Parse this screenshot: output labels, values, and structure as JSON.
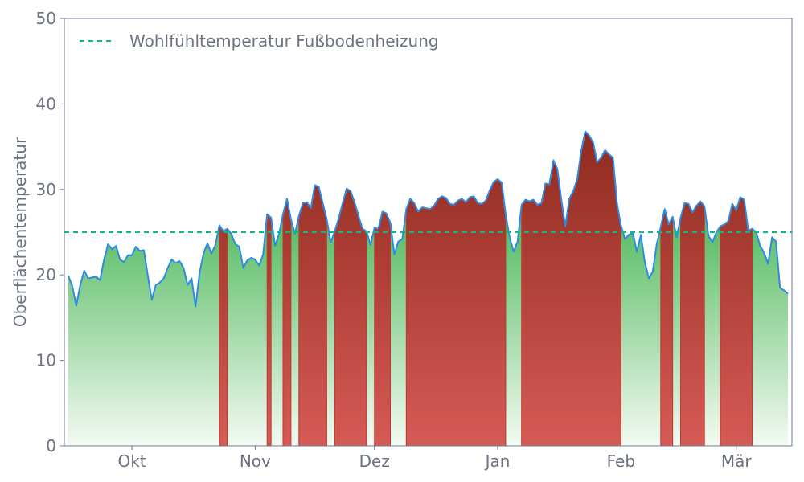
{
  "chart_data": {
    "type": "area",
    "title": "",
    "xlabel": "",
    "ylabel": "Oberflächentemperatur",
    "ylim": [
      0,
      50
    ],
    "yticks": [
      0,
      10,
      20,
      30,
      40,
      50
    ],
    "xlim": [
      "2023-09-14",
      "2024-03-15"
    ],
    "xticks": [
      {
        "date": "2023-10-01",
        "label": "Okt"
      },
      {
        "date": "2023-11-01",
        "label": "Nov"
      },
      {
        "date": "2023-12-01",
        "label": "Dez"
      },
      {
        "date": "2024-01-01",
        "label": "Jan"
      },
      {
        "date": "2024-02-01",
        "label": "Feb"
      },
      {
        "date": "2024-03-01",
        "label": "Mär"
      }
    ],
    "grid": false,
    "legend": {
      "position": "top-left",
      "entries": [
        "Wohlfühltemperatur Fußbodenheizung"
      ]
    },
    "threshold": {
      "name": "Wohlfühltemperatur Fußbodenheizung",
      "value": 25,
      "style": "dashed",
      "color": "#10b981"
    },
    "colors": {
      "line": "#2b8be6",
      "above": "#b03a2e",
      "below": "#5fbf6a"
    },
    "series": [
      {
        "x_start": "2023-09-15",
        "step_days": 1,
        "values": [
          19.9,
          18.7,
          16.4,
          18.8,
          20.5,
          19.6,
          19.7,
          19.8,
          19.4,
          21.8,
          23.6,
          23.0,
          23.4,
          21.8,
          21.5,
          22.3,
          22.3,
          23.3,
          22.8,
          22.9,
          19.9,
          17.1,
          18.8,
          19.1,
          19.6,
          20.8,
          21.8,
          21.4,
          21.6,
          20.8,
          18.8,
          19.6,
          16.3,
          20.2,
          22.5,
          23.7,
          22.5,
          23.5,
          25.8,
          25.1,
          25.4,
          24.8,
          23.6,
          23.3,
          20.8,
          21.7,
          22.0,
          21.8,
          21.1,
          22.4,
          27.1,
          26.7,
          23.4,
          24.8,
          27.1,
          28.9,
          26.5,
          24.8,
          26.9,
          28.4,
          28.5,
          27.8,
          30.5,
          30.3,
          28.4,
          26.5,
          23.8,
          25.1,
          26.6,
          28.4,
          30.1,
          29.8,
          28.5,
          26.9,
          25.4,
          25.1,
          23.5,
          25.5,
          25.4,
          27.4,
          27.2,
          26.1,
          22.4,
          23.9,
          24.2,
          27.7,
          28.9,
          28.4,
          27.4,
          27.9,
          27.8,
          27.7,
          28.1,
          28.9,
          29.2,
          29.0,
          28.3,
          28.2,
          28.7,
          28.9,
          28.5,
          29.1,
          29.2,
          28.4,
          28.3,
          28.7,
          29.9,
          30.9,
          31.2,
          30.8,
          27.1,
          24.4,
          22.7,
          23.9,
          28.2,
          28.8,
          28.6,
          28.8,
          28.2,
          28.4,
          30.7,
          30.6,
          33.4,
          32.4,
          28.8,
          25.7,
          28.9,
          29.8,
          31.2,
          34.5,
          36.8,
          36.3,
          35.5,
          33.2,
          33.7,
          34.6,
          34.1,
          33.7,
          28.4,
          25.8,
          24.2,
          24.7,
          24.9,
          22.7,
          24.7,
          21.5,
          19.6,
          20.4,
          23.6,
          25.6,
          27.7,
          25.9,
          26.8,
          24.4,
          26.7,
          28.4,
          28.3,
          27.3,
          28.1,
          28.6,
          28.0,
          24.6,
          23.8,
          25.0,
          25.7,
          25.9,
          26.3,
          28.3,
          27.6,
          29.1,
          28.8,
          25.2,
          25.4,
          25.0,
          23.4,
          22.6,
          21.3,
          24.4,
          23.9,
          18.5,
          18.2,
          17.8
        ]
      }
    ]
  }
}
